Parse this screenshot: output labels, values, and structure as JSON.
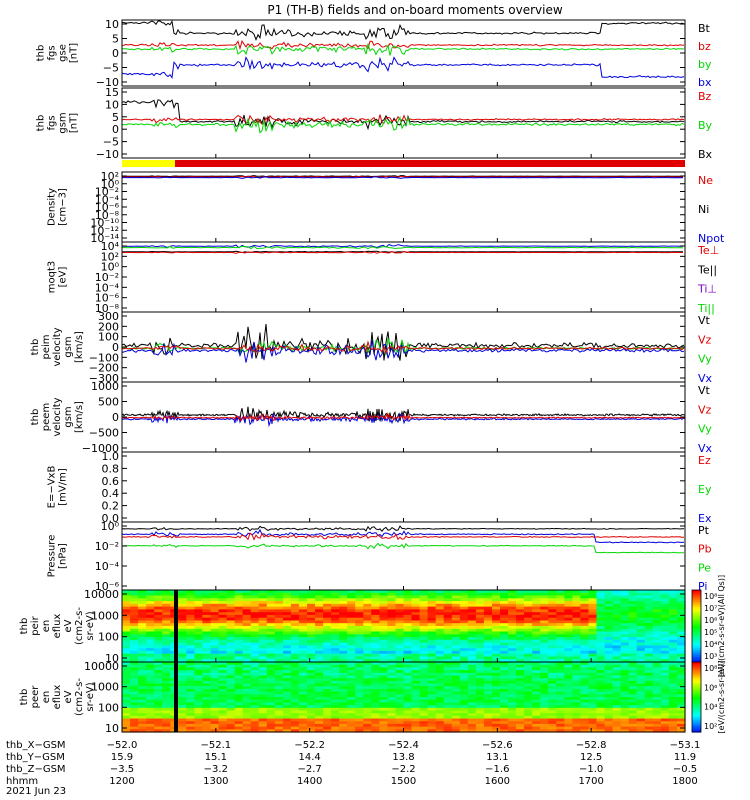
{
  "title": "P1 (TH-B) fields and on-board moments overview",
  "date_label": "2021 Jun 23",
  "colors": {
    "black": "#000000",
    "red": "#e00000",
    "green": "#00d800",
    "blue": "#0000e0",
    "yellow": "#ffff00"
  },
  "chart_data": [
    {
      "type": "line",
      "ylabel": [
        "thb",
        "fgs",
        "gse",
        "[nT]"
      ],
      "yticks": [
        "10",
        "5",
        "0",
        "−5",
        "−10"
      ],
      "ylim": [
        -10,
        10
      ],
      "legend": [
        {
          "label": "Bt",
          "color": "#000000"
        },
        {
          "label": "bz",
          "color": "#e00000"
        },
        {
          "label": "by",
          "color": "#00d800"
        },
        {
          "label": "bx",
          "color": "#0000e0"
        }
      ]
    },
    {
      "type": "line",
      "ylabel": [
        "thb",
        "fgs",
        "gsm",
        "[nT]"
      ],
      "yticks": [
        "15",
        "10",
        "5",
        "0",
        "−5",
        "−10"
      ],
      "ylim": [
        -15,
        15
      ],
      "legend": [
        {
          "label": "Bz",
          "color": "#e00000"
        },
        {
          "label": "By",
          "color": "#00d800"
        },
        {
          "label": "Bx",
          "color": "#000000"
        }
      ]
    },
    {
      "type": "line",
      "ylabel": [
        "Density",
        "[cm−3]"
      ],
      "yticks": [
        "10²",
        "10⁰",
        "10⁻²",
        "10⁻⁴",
        "10⁻⁶",
        "10⁻⁸",
        "10⁻¹⁰",
        "10⁻¹²",
        "10⁻¹⁴"
      ],
      "scale": "log",
      "legend": [
        {
          "label": "Ne",
          "color": "#e00000"
        },
        {
          "label": "Ni",
          "color": "#000000"
        },
        {
          "label": "Npot",
          "color": "#0000e0"
        }
      ]
    },
    {
      "type": "line",
      "ylabel": [
        "moqt3",
        "[eV]"
      ],
      "yticks": [
        "10⁴",
        "10²",
        "10⁰",
        "10⁻²",
        "10⁻⁴",
        "10⁻⁶",
        "10⁻⁸"
      ],
      "scale": "log",
      "legend": [
        {
          "label": "Te⊥",
          "color": "#e00000"
        },
        {
          "label": "Te||",
          "color": "#000000"
        },
        {
          "label": "Ti⊥",
          "color": "#7a00c8"
        },
        {
          "label": "Ti||",
          "color": "#00d800"
        }
      ]
    },
    {
      "type": "line",
      "ylabel": [
        "thb",
        "peim",
        "velocity",
        "gsm",
        "[km/s]"
      ],
      "yticks": [
        "300",
        "200",
        "100",
        "0",
        "−100",
        "−200",
        "−300"
      ],
      "ylim": [
        -300,
        300
      ],
      "legend": [
        {
          "label": "Vt",
          "color": "#000000"
        },
        {
          "label": "Vz",
          "color": "#e00000"
        },
        {
          "label": "Vy",
          "color": "#00d800"
        },
        {
          "label": "Vx",
          "color": "#0000e0"
        }
      ]
    },
    {
      "type": "line",
      "ylabel": [
        "thb",
        "peem",
        "velocity",
        "gsm",
        "[km/s]"
      ],
      "yticks": [
        "1000",
        "500",
        "0",
        "−500",
        "−1000"
      ],
      "ylim": [
        -1000,
        1000
      ],
      "legend": [
        {
          "label": "Vt",
          "color": "#000000"
        },
        {
          "label": "Vz",
          "color": "#e00000"
        },
        {
          "label": "Vy",
          "color": "#00d800"
        },
        {
          "label": "Vx",
          "color": "#0000e0"
        }
      ]
    },
    {
      "type": "line",
      "ylabel": [
        "E=−VxB",
        "[mV/m]"
      ],
      "yticks": [
        "1.0",
        "0.8",
        "0.6",
        "0.4",
        "0.2",
        "0.0"
      ],
      "ylim": [
        0,
        1
      ],
      "legend": [
        {
          "label": "Ez",
          "color": "#e00000"
        },
        {
          "label": "Ey",
          "color": "#00d800"
        },
        {
          "label": "Ex",
          "color": "#0000e0"
        }
      ]
    },
    {
      "type": "line",
      "ylabel": [
        "Pressure",
        "[nPa]"
      ],
      "yticks": [
        "10⁰",
        "10⁻²",
        "10⁻⁴",
        "10⁻⁶"
      ],
      "scale": "log",
      "legend": [
        {
          "label": "Pt",
          "color": "#000000"
        },
        {
          "label": "Pb",
          "color": "#e00000"
        },
        {
          "label": "Pe",
          "color": "#00d800"
        },
        {
          "label": "Pi",
          "color": "#0000e0"
        }
      ]
    },
    {
      "type": "heatmap",
      "ylabel": [
        "thb",
        "peir",
        "en",
        "eflux",
        "eV",
        "(cm2-s-",
        "sr-eV)"
      ],
      "yticks": [
        "10000",
        "1000",
        "100",
        "10"
      ],
      "colorbar_ticks": [
        "10⁸",
        "10⁷",
        "10⁶",
        "10⁵",
        "10⁴",
        "10³"
      ],
      "colorbar_label": "[eV/(cm2-s-sr-eV)(All Qs)]"
    },
    {
      "type": "heatmap",
      "ylabel": [
        "thb",
        "peer",
        "en",
        "eflux",
        "eV",
        "(cm2-s-",
        "sr-eV)"
      ],
      "yticks": [
        "10000",
        "1000",
        "100",
        "10"
      ],
      "colorbar_ticks": [
        "10⁸",
        "10⁶",
        "10⁴",
        "10²"
      ],
      "colorbar_label": "[eV/(cm2-s-sr-eV)]"
    }
  ],
  "x_axis": {
    "rows": [
      {
        "label": "thb_X−GSM",
        "values": [
          "−52.0",
          "−52.1",
          "−52.2",
          "−52.4",
          "−52.6",
          "−52.8",
          "−53.1"
        ]
      },
      {
        "label": "thb_Y−GSM",
        "values": [
          "15.9",
          "15.1",
          "14.4",
          "13.8",
          "13.1",
          "12.5",
          "11.9"
        ]
      },
      {
        "label": "thb_Z−GSM",
        "values": [
          "−3.5",
          "−3.2",
          "−2.7",
          "−2.2",
          "−1.6",
          "−1.0",
          "−0.5"
        ]
      },
      {
        "label": "hhmm",
        "values": [
          "1200",
          "1300",
          "1400",
          "1500",
          "1600",
          "1700",
          "1800"
        ]
      }
    ]
  }
}
